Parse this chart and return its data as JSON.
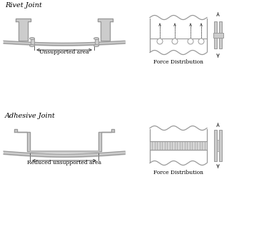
{
  "bg_color": "#ffffff",
  "line_color": "#999999",
  "dark_color": "#444444",
  "fill_color": "#cccccc",
  "hatch_color": "#aaaaaa",
  "rivet_joint_label": "Rivet Joint",
  "adhesive_joint_label": "Adhesive Joint",
  "force_dist_label": "Force Distribution",
  "unsupported_label": "Unsupported area",
  "reduced_label": "Reduced unsupported area",
  "figsize": [
    3.77,
    3.28
  ],
  "dpi": 100
}
